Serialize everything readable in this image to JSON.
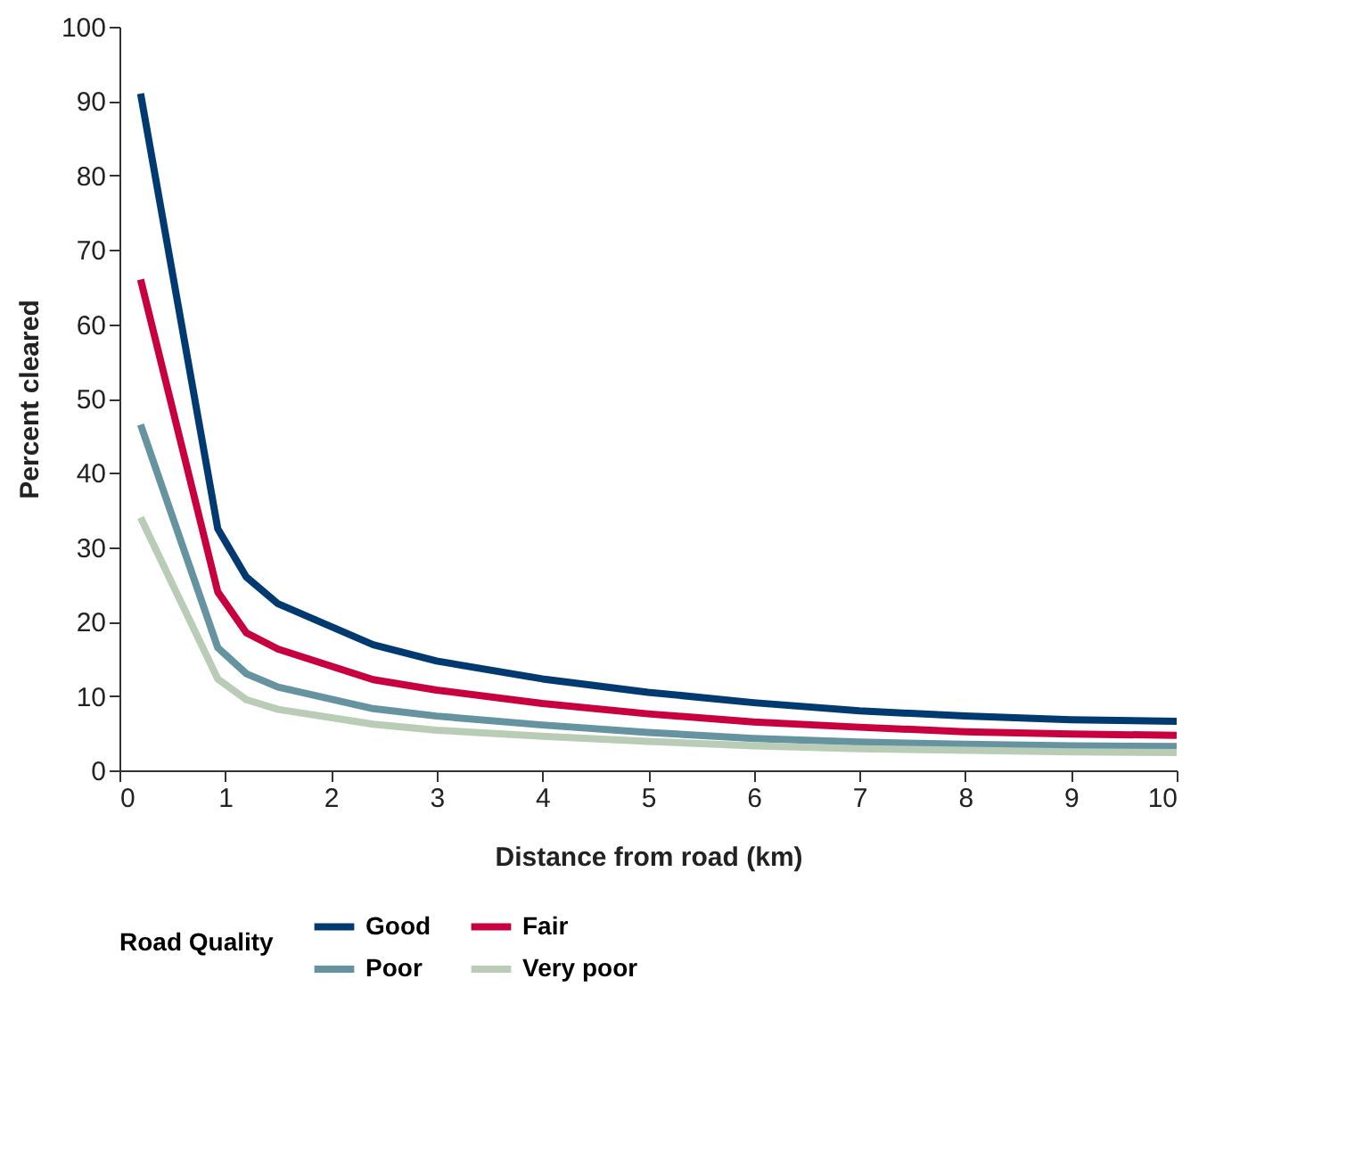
{
  "chart_data": {
    "type": "line",
    "xlabel": "Distance from road (km)",
    "ylabel": "Percent cleared",
    "legend_title": "Road Quality",
    "legend": "bottom",
    "x": [
      0.2,
      0.93,
      1.2,
      1.5,
      2.4,
      3,
      4,
      5,
      6,
      7,
      8,
      9,
      10
    ],
    "series": [
      {
        "name": "Good",
        "color": "#003a70",
        "values": [
          91,
          32.5,
          26,
          22.4,
          16.9,
          14.7,
          12.3,
          10.5,
          9.1,
          8.0,
          7.3,
          6.8,
          6.6
        ]
      },
      {
        "name": "Fair",
        "color": "#c8003f",
        "values": [
          66,
          24,
          18.5,
          16.3,
          12.2,
          10.8,
          9,
          7.6,
          6.5,
          5.8,
          5.2,
          4.9,
          4.7
        ]
      },
      {
        "name": "Poor",
        "color": "#6593a0",
        "values": [
          46.5,
          16.5,
          13,
          11.2,
          8.3,
          7.3,
          6.1,
          5.1,
          4.3,
          3.8,
          3.5,
          3.3,
          3.2
        ]
      },
      {
        "name": "Very poor",
        "color": "#b9cdb6",
        "values": [
          34,
          12.3,
          9.5,
          8.2,
          6.2,
          5.4,
          4.6,
          3.9,
          3.3,
          2.9,
          2.7,
          2.5,
          2.4
        ]
      }
    ],
    "xlim": [
      0,
      10
    ],
    "xticks": [
      0,
      1,
      2,
      3,
      4,
      5,
      6,
      7,
      8,
      9,
      10
    ],
    "ylim": [
      0,
      100
    ],
    "yticks": [
      0,
      10,
      20,
      30,
      40,
      50,
      60,
      70,
      80,
      90,
      100
    ],
    "grid": false,
    "marker": "none",
    "line_style": "solid"
  }
}
